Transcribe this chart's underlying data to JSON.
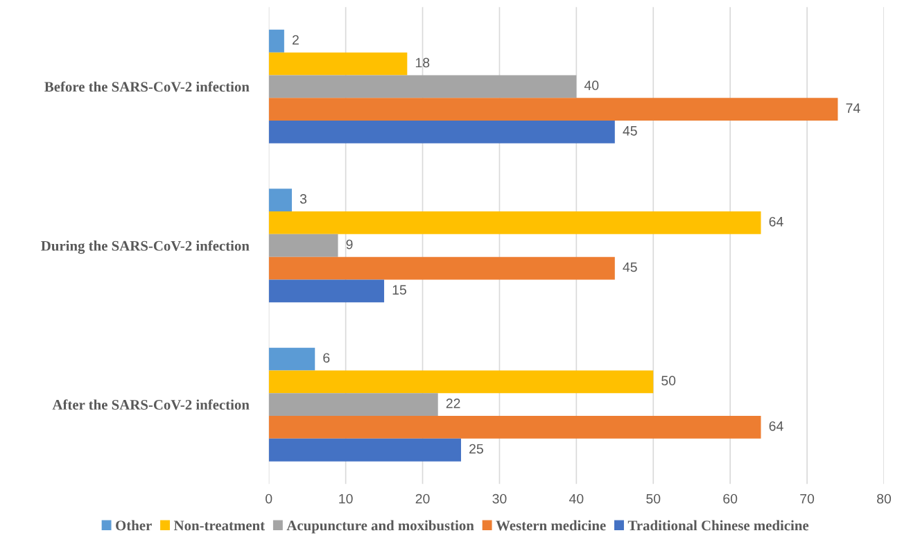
{
  "chart_data": {
    "type": "bar",
    "orientation": "horizontal",
    "categories": [
      "Before the SARS-CoV-2 infection",
      "During the SARS-CoV-2 infection",
      "After the SARS-CoV-2 infection"
    ],
    "series": [
      {
        "name": "Other",
        "color": "#5b9bd5",
        "values": [
          2,
          3,
          6
        ]
      },
      {
        "name": "Non-treatment",
        "color": "#ffc000",
        "values": [
          18,
          64,
          50
        ]
      },
      {
        "name": "Acupuncture and moxibustion",
        "color": "#a5a5a5",
        "values": [
          40,
          9,
          22
        ]
      },
      {
        "name": "Western medicine",
        "color": "#ed7d31",
        "values": [
          74,
          45,
          64
        ]
      },
      {
        "name": "Traditional Chinese medicine",
        "color": "#4472c4",
        "values": [
          45,
          15,
          25
        ]
      }
    ],
    "xlim": [
      0,
      80
    ],
    "xticks": [
      0,
      10,
      20,
      30,
      40,
      50,
      60,
      70,
      80
    ],
    "grid": "x",
    "legend": "bottom",
    "data_labels": true
  }
}
